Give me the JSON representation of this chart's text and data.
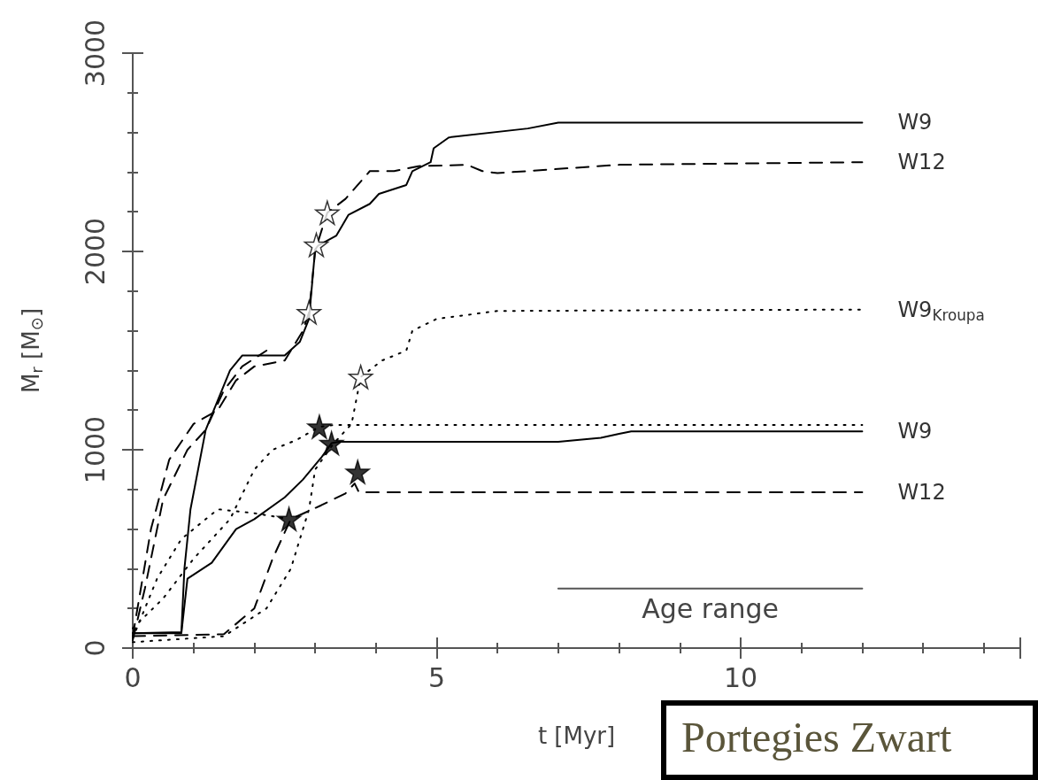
{
  "chart_data": {
    "type": "line",
    "xlabel": "t [Myr]",
    "ylabel": "M$_{r}$ [M$_{⊙}$]",
    "xlim": [
      0,
      14.6
    ],
    "xticks": [
      0,
      5,
      10
    ],
    "ylim": [
      0,
      3000
    ],
    "yticks": [
      0,
      1000,
      2000,
      3000
    ],
    "grid": false,
    "legend": false,
    "series": [
      {
        "name": "W9",
        "color": "#000000",
        "line_style": "solid",
        "x": [
          0,
          0.8,
          0.85,
          0.95,
          1.2,
          1.6,
          1.8,
          2.5,
          2.75,
          2.9,
          3.0,
          3.05,
          3.35,
          3.55,
          3.9,
          4.05,
          4.5,
          4.6,
          4.9,
          4.95,
          5.2,
          6.5,
          7,
          12
        ],
        "values": [
          75,
          80,
          400,
          700,
          1100,
          1400,
          1475,
          1475,
          1545,
          1660,
          2010,
          2030,
          2080,
          2185,
          2240,
          2290,
          2335,
          2405,
          2450,
          2520,
          2575,
          2620,
          2650,
          2650
        ]
      },
      {
        "name": "W12",
        "color": "#000000",
        "line_style": "dashed",
        "x": [
          0,
          0.3,
          0.6,
          1.0,
          1.4,
          1.7,
          2.0,
          2.5,
          2.8,
          2.9,
          3.0,
          3.1,
          3.2,
          3.5,
          3.9,
          4.3,
          4.7,
          5.5,
          5.75,
          6,
          8,
          12
        ],
        "values": [
          60,
          600,
          950,
          1130,
          1200,
          1350,
          1420,
          1450,
          1600,
          1693,
          2000,
          2100,
          2195,
          2265,
          2405,
          2405,
          2430,
          2437,
          2405,
          2395,
          2437,
          2450
        ]
      },
      {
        "name": "W9$_{Kroupa}$",
        "color": "#000000",
        "line_style": "dotted",
        "x": [
          0,
          1.5,
          2.2,
          2.6,
          2.9,
          3.0,
          3.3,
          3.6,
          3.75,
          4.1,
          4.5,
          4.6,
          5,
          6,
          12
        ],
        "values": [
          30,
          60,
          200,
          400,
          700,
          900,
          1030,
          1130,
          1367,
          1450,
          1500,
          1600,
          1660,
          1700,
          1707
        ]
      },
      {
        "name": "W9",
        "color": "#000000",
        "line_style": "solid",
        "x": [
          0,
          0.8,
          0.9,
          1.3,
          1.7,
          2.0,
          2.5,
          2.8,
          3.1,
          3.27,
          3.4,
          7,
          7.7,
          8,
          8.2,
          12
        ],
        "values": [
          75,
          75,
          350,
          430,
          600,
          650,
          760,
          850,
          960,
          1033,
          1040,
          1040,
          1060,
          1080,
          1093,
          1093
        ]
      },
      {
        "name": "W12",
        "color": "#000000",
        "line_style": "dashed",
        "x": [
          0,
          1.5,
          2.0,
          2.3,
          2.6,
          3.1,
          3.5,
          3.65,
          3.72,
          12
        ],
        "values": [
          60,
          70,
          200,
          450,
          650,
          720,
          780,
          830,
          786,
          786
        ]
      },
      {
        "color": "#000000",
        "line_style": "dotted",
        "x": [
          0,
          0.5,
          1.0,
          1.6,
          2.0,
          2.3,
          2.7,
          3.07,
          3.3,
          12
        ],
        "values": [
          100,
          250,
          450,
          650,
          900,
          1000,
          1050,
          1116,
          1125,
          1125
        ]
      },
      {
        "color": "#000000",
        "line_style": "dotted",
        "x": [
          0,
          0.4,
          0.8,
          1.4,
          2.0,
          2.57
        ],
        "values": [
          50,
          350,
          550,
          700,
          680,
          651
        ]
      },
      {
        "color": "#000000",
        "line_style": "dashed",
        "x": [
          0,
          0.2,
          0.5,
          0.9,
          1.2,
          1.5,
          1.8,
          2.2
        ],
        "values": [
          40,
          300,
          750,
          1000,
          1100,
          1300,
          1420,
          1500
        ]
      },
      {
        "color": "#555555",
        "line_style": "solid",
        "x": [
          7,
          12
        ],
        "values": [
          300,
          300
        ]
      },
      {
        "type": "scatter",
        "marker": "star",
        "color": "#ffffff",
        "x": [
          2.9,
          3.02,
          3.2,
          3.75
        ],
        "values": [
          1693,
          2033,
          2195,
          1367
        ]
      },
      {
        "type": "scatter",
        "marker": "star",
        "color": "#000000",
        "x": [
          3.07,
          3.27,
          3.7,
          2.57
        ],
        "values": [
          1116,
          1033,
          888,
          651
        ]
      }
    ],
    "annotations": [
      {
        "text": "Age range",
        "x": 9.5,
        "y": 300
      },
      "Portegies Zwart"
    ]
  }
}
